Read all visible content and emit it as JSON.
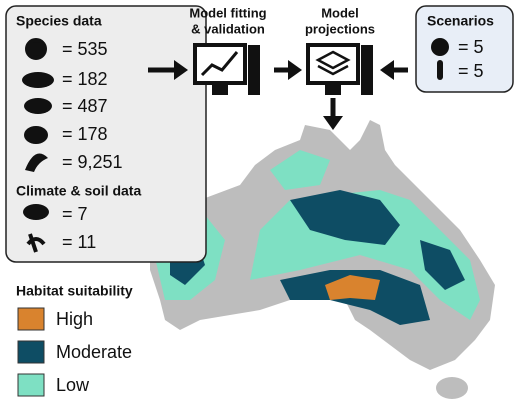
{
  "species_data": {
    "title": "Species data",
    "counts": [
      "= 535",
      "= 182",
      "= 487",
      "= 178",
      "= 9,251"
    ]
  },
  "climate_soil_data": {
    "title": "Climate & soil data",
    "counts": [
      "= 7",
      "= 11"
    ]
  },
  "steps": [
    {
      "lines": [
        "Model fitting",
        "& validation"
      ]
    },
    {
      "lines": [
        "Model",
        "projections"
      ]
    }
  ],
  "scenarios": {
    "title": "Scenarios",
    "counts": [
      "= 5",
      "= 5"
    ]
  },
  "legend": {
    "title": "Habitat suitability",
    "items": [
      "High",
      "Moderate",
      "Low"
    ]
  }
}
